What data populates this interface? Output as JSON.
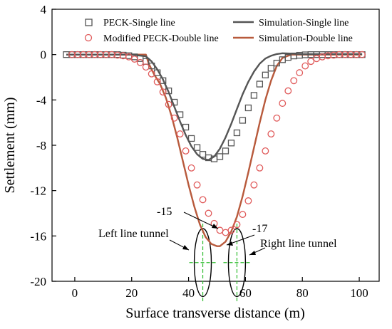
{
  "chart_data": {
    "type": "line",
    "xlabel": "Surface transverse distance (m)",
    "ylabel": "Settlement (mm)",
    "xlim": [
      -8,
      107
    ],
    "ylim": [
      -20,
      4
    ],
    "xticks": [
      0,
      20,
      40,
      60,
      80,
      100
    ],
    "yticks": [
      4,
      0,
      -4,
      -8,
      -12,
      -16,
      -20
    ],
    "legend_position": "top",
    "series": [
      {
        "name": "PECK-Single line",
        "kind": "markers-square",
        "color": "#555555",
        "x": [
          -3,
          -1,
          1,
          3,
          5,
          7,
          9,
          11,
          13,
          15,
          17,
          19,
          21,
          23,
          25,
          27,
          29,
          31,
          33,
          35,
          37,
          39,
          41,
          43,
          45,
          47,
          49,
          51,
          53,
          55,
          57,
          59,
          61,
          63,
          65,
          67,
          69,
          71,
          73,
          75,
          77,
          79,
          81,
          83,
          85,
          87,
          89,
          91,
          93,
          95,
          97,
          99,
          101
        ],
        "y": [
          0,
          0,
          0,
          0,
          0,
          0,
          0,
          0,
          0,
          0,
          -0.05,
          -0.1,
          -0.2,
          -0.35,
          -0.6,
          -1.0,
          -1.6,
          -2.3,
          -3.2,
          -4.2,
          -5.3,
          -6.4,
          -7.4,
          -8.2,
          -8.8,
          -9.1,
          -9.2,
          -9.0,
          -8.5,
          -7.8,
          -6.9,
          -5.8,
          -4.7,
          -3.6,
          -2.6,
          -1.8,
          -1.2,
          -0.75,
          -0.45,
          -0.25,
          -0.12,
          -0.06,
          -0.02,
          0,
          0,
          0,
          0,
          0,
          0,
          0,
          0,
          0,
          0
        ]
      },
      {
        "name": "Modified PECK-Double line",
        "kind": "markers-circle",
        "color": "#e05a5a",
        "x": [
          -1,
          1,
          3,
          5,
          7,
          9,
          11,
          13,
          15,
          17,
          19,
          21,
          23,
          25,
          27,
          29,
          31,
          33,
          35,
          37,
          39,
          41,
          43,
          45,
          47,
          49,
          51,
          53,
          55,
          57,
          59,
          61,
          63,
          65,
          67,
          69,
          71,
          73,
          75,
          77,
          79,
          81,
          83,
          85,
          87,
          89,
          91,
          93,
          95,
          97,
          99,
          101
        ],
        "y": [
          0,
          0,
          0,
          0,
          0,
          0,
          0,
          0,
          -0.05,
          -0.1,
          -0.2,
          -0.4,
          -0.7,
          -1.1,
          -1.7,
          -2.4,
          -3.3,
          -4.4,
          -5.6,
          -7.0,
          -8.5,
          -10.0,
          -11.5,
          -12.8,
          -14.0,
          -14.9,
          -15.5,
          -15.7,
          -15.5,
          -15.0,
          -14.1,
          -12.9,
          -11.5,
          -10.0,
          -8.5,
          -7.0,
          -5.6,
          -4.3,
          -3.2,
          -2.3,
          -1.6,
          -1.0,
          -0.6,
          -0.35,
          -0.2,
          -0.1,
          -0.05,
          0,
          0,
          0,
          0,
          0
        ]
      },
      {
        "name": "Simulation-Single line",
        "kind": "line",
        "color": "#555555",
        "x": [
          -3,
          20,
          25,
          27,
          29,
          31,
          33,
          35,
          37,
          39,
          41,
          43,
          45,
          47,
          49,
          51,
          53,
          55,
          57,
          59,
          61,
          63,
          65,
          67,
          69,
          71,
          73,
          75,
          80,
          101
        ],
        "y": [
          0,
          0,
          -0.15,
          -0.6,
          -1.3,
          -2.2,
          -3.3,
          -4.6,
          -5.9,
          -7.1,
          -8.1,
          -8.8,
          -9.2,
          -9.3,
          -9.0,
          -8.3,
          -7.3,
          -6.1,
          -4.8,
          -3.5,
          -2.4,
          -1.5,
          -0.8,
          -0.35,
          -0.1,
          0.05,
          0.12,
          0.1,
          0.05,
          0.05
        ]
      },
      {
        "name": "Simulation-Double line",
        "kind": "line",
        "color": "#b85a3c",
        "x": [
          -3,
          20,
          25,
          26,
          28,
          30,
          32,
          34,
          36,
          38,
          40,
          42,
          44,
          46,
          48,
          50,
          51,
          53,
          55,
          57,
          59,
          61,
          63,
          65,
          67,
          69,
          71,
          73,
          75,
          76,
          80,
          101
        ],
        "y": [
          0,
          0,
          0,
          -0.8,
          -1.8,
          -2.6,
          -3.8,
          -5.4,
          -7.3,
          -9.4,
          -11.5,
          -13.4,
          -15.0,
          -16.1,
          -16.7,
          -16.9,
          -16.9,
          -16.5,
          -15.6,
          -14.3,
          -12.5,
          -10.4,
          -8.2,
          -6.0,
          -4.0,
          -2.3,
          -1.0,
          -0.3,
          -0.1,
          0,
          0,
          0
        ]
      }
    ],
    "annotations": {
      "left_value": "-15",
      "right_value": "-17",
      "left_tunnel": "Left line tunnel",
      "right_tunnel": "Right line tunnel"
    },
    "tunnels": [
      {
        "center_x": 45,
        "center_y": -18.35,
        "radius": 3.0
      },
      {
        "center_x": 57,
        "center_y": -18.35,
        "radius": 3.0
      }
    ]
  }
}
